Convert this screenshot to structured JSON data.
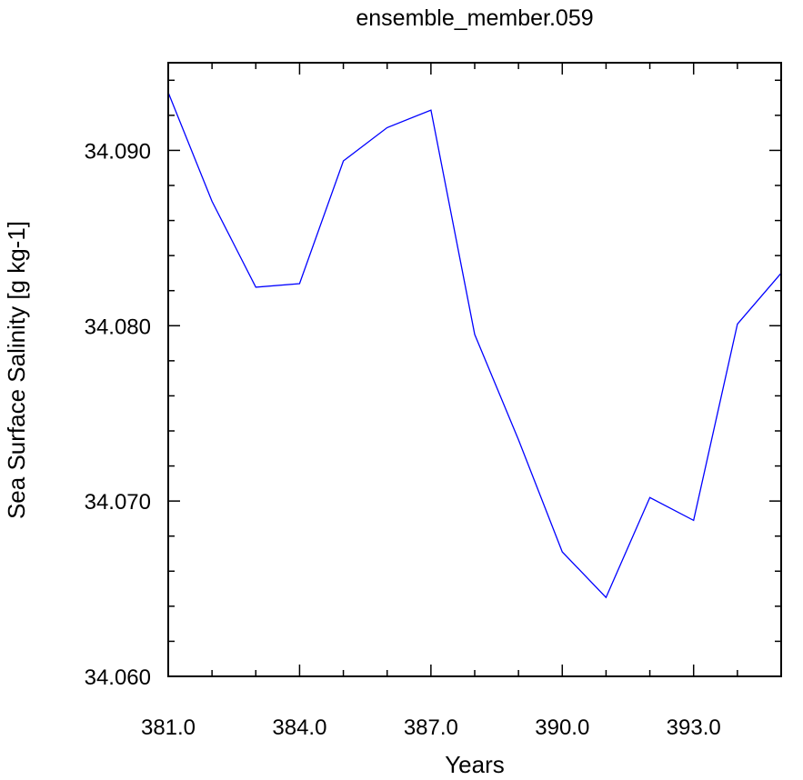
{
  "chart_data": {
    "type": "line",
    "title": "ensemble_member.059",
    "xlabel": "Years",
    "ylabel": "Sea Surface Salinity [g kg-1]",
    "xlim": [
      381,
      395
    ],
    "ylim": [
      34.06,
      34.095
    ],
    "x_ticks": [
      381,
      384,
      387,
      390,
      393
    ],
    "x_tick_labels": [
      "381.0",
      "384.0",
      "387.0",
      "390.0",
      "393.0"
    ],
    "y_ticks": [
      34.06,
      34.07,
      34.08,
      34.09
    ],
    "y_tick_labels": [
      "34.060",
      "34.070",
      "34.080",
      "34.090"
    ],
    "grid": false,
    "series": [
      {
        "color": "#0000ff",
        "x": [
          381,
          382,
          383,
          384,
          385,
          386,
          387,
          388,
          389,
          390,
          391,
          392,
          393,
          394,
          395
        ],
        "values": [
          34.0933,
          34.0871,
          34.0822,
          34.0824,
          34.0894,
          34.0913,
          34.0923,
          34.0795,
          34.0735,
          34.0671,
          34.0645,
          34.0702,
          34.0689,
          34.0801,
          34.083
        ]
      }
    ]
  }
}
